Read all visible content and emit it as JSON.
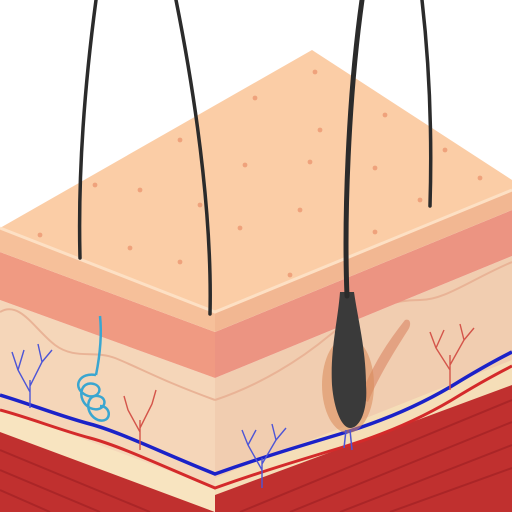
{
  "colors": {
    "background": "#ffffff",
    "epidermis_top": "#fbcda6",
    "epidermis_front": "#f6c09a",
    "epidermis_right": "#f2b792",
    "top_edge": "#fde0c4",
    "pore": "#efa27c",
    "dermis_band": "#f09a82",
    "dermis_band_right": "#ec9482",
    "dermis": "#f5d6b9",
    "dermis_right": "#f1cdb0",
    "dermis_edge": "#e9b396",
    "fat": "#f8e4c0",
    "fat_right": "#f5deb8",
    "muscle": "#c0302f",
    "muscle_stripe": "#9c1f22",
    "artery": "#1b22c8",
    "vein": "#d42a2a",
    "capillary_blue": "#4d55d6",
    "capillary_red": "#d4554a",
    "hair": "#2b2b2b",
    "hair_root": "#3a3a3a",
    "follicle_glow": "#d98a5a",
    "sweat_gland": "#3aa6d0",
    "erector_muscle": "#e09a7a"
  },
  "icons": [
    "skin-block",
    "hair",
    "sweat-gland",
    "blood-vessel",
    "hair-follicle"
  ]
}
